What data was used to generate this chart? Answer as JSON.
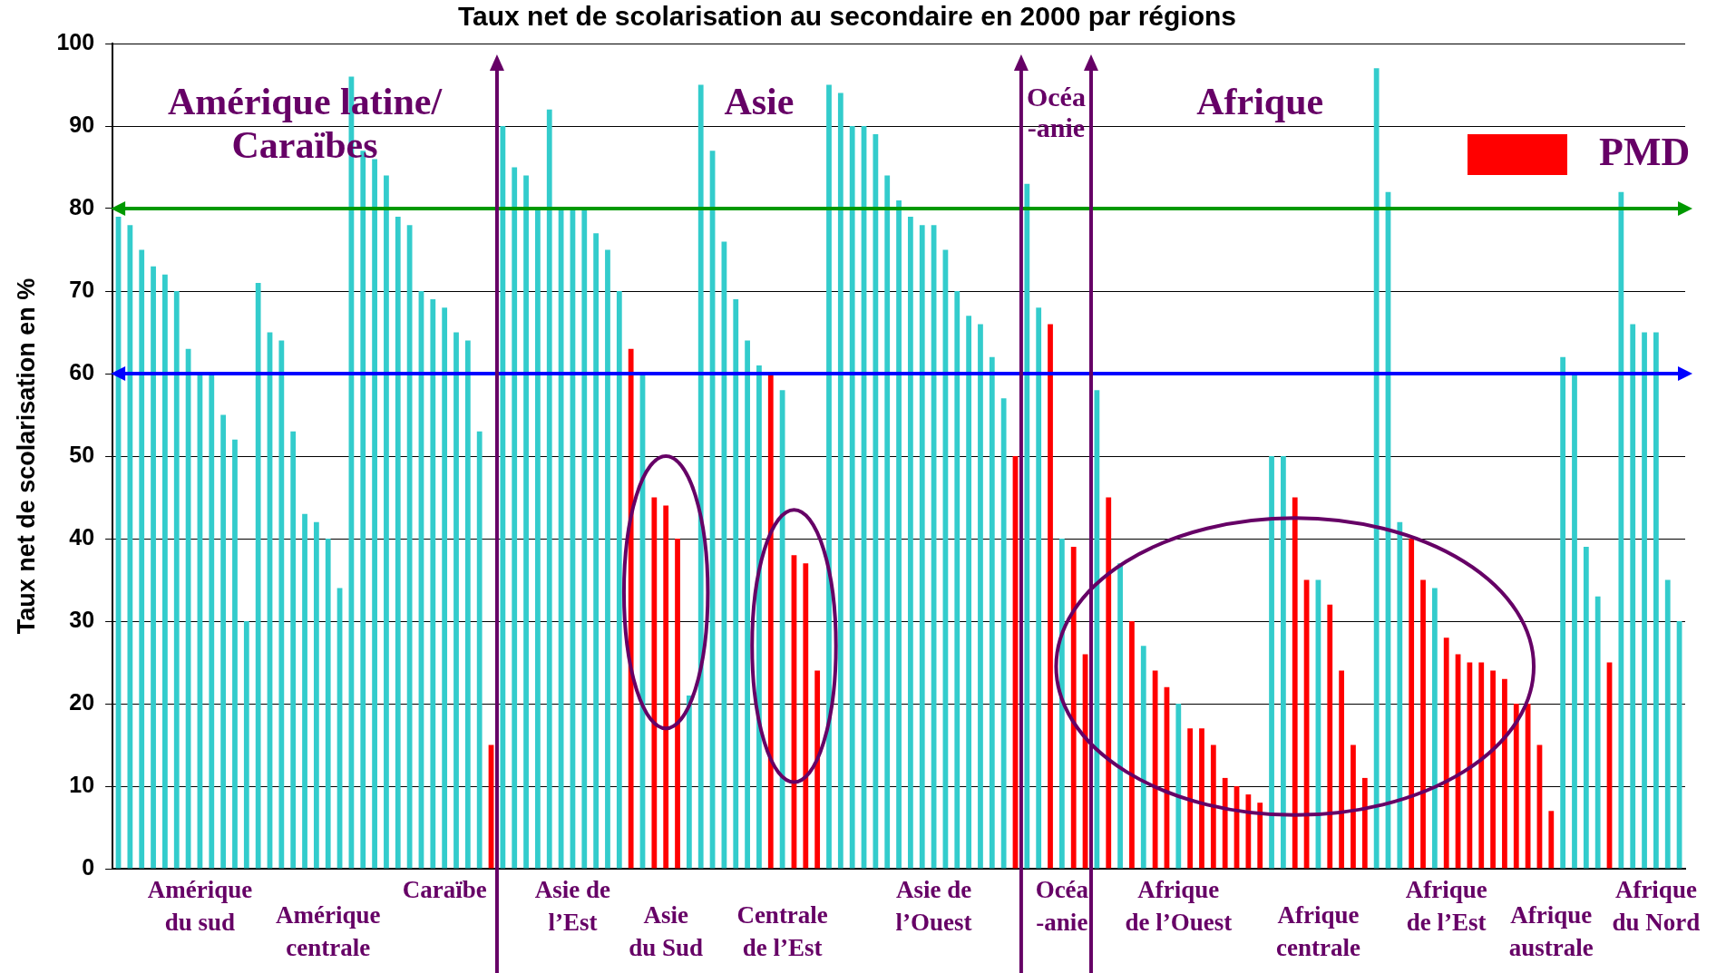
{
  "chart_data": {
    "type": "bar",
    "title": "Taux net de scolarisation au secondaire en 2000 par régions",
    "ylabel": "Taux net de scolarisation en %",
    "categories": [
      null,
      null,
      null,
      null,
      null,
      null,
      null,
      "Amérique\ndu sud",
      null,
      null,
      null,
      null,
      null,
      null,
      null,
      null,
      null,
      null,
      "Amérique\ncentrale",
      null,
      null,
      null,
      null,
      null,
      null,
      null,
      null,
      null,
      "Caraïbe",
      null,
      null,
      null,
      null,
      null,
      null,
      null,
      null,
      null,
      null,
      "Asie de\nl’Est",
      null,
      null,
      null,
      null,
      null,
      null,
      null,
      "Asie\ndu Sud",
      null,
      null,
      null,
      null,
      null,
      null,
      null,
      null,
      null,
      "Centrale\nde l’Est",
      null,
      null,
      null,
      null,
      null,
      null,
      null,
      null,
      null,
      null,
      null,
      null,
      "Asie de\nl’Ouest",
      null,
      null,
      null,
      null,
      null,
      null,
      null,
      null,
      null,
      null,
      "Océa\n-anie",
      null,
      null,
      null,
      null,
      null,
      null,
      null,
      null,
      null,
      "Afrique\nde l’Ouest",
      null,
      null,
      null,
      null,
      null,
      null,
      null,
      null,
      null,
      null,
      null,
      "Afrique\ncentrale",
      null,
      null,
      null,
      null,
      null,
      null,
      null,
      null,
      null,
      null,
      "Afrique\nde l’Est",
      null,
      null,
      null,
      null,
      null,
      null,
      null,
      null,
      "Afrique\naustrale",
      null,
      null,
      null,
      null,
      null,
      null,
      null,
      null,
      "Afrique\ndu Nord",
      null,
      null
    ],
    "series": [
      {
        "color": "#33cccc",
        "values": [
          79,
          78,
          75,
          73,
          72,
          70,
          63,
          60,
          60,
          55,
          52,
          30,
          71,
          65,
          64,
          53,
          43,
          42,
          40,
          34,
          96,
          87,
          86,
          84,
          79,
          78,
          70,
          69,
          68,
          65,
          64,
          53,
          null,
          90,
          85,
          84,
          80,
          92,
          80,
          80,
          80,
          77,
          75,
          70,
          null,
          60,
          null,
          null,
          null,
          21,
          95,
          87,
          76,
          69,
          64,
          61,
          null,
          58,
          null,
          null,
          null,
          95,
          94,
          90,
          90,
          89,
          84,
          81,
          79,
          78,
          78,
          75,
          70,
          67,
          66,
          62,
          57,
          null,
          83,
          68,
          null,
          40,
          null,
          null,
          58,
          null,
          37,
          null,
          27,
          null,
          null,
          20,
          null,
          null,
          null,
          null,
          null,
          null,
          null,
          50,
          50,
          null,
          null,
          35,
          null,
          null,
          null,
          null,
          97,
          82,
          42,
          null,
          null,
          34,
          null,
          null,
          null,
          null,
          null,
          null,
          null,
          null,
          null,
          null,
          62,
          60,
          39,
          33,
          null,
          82,
          66,
          65,
          65,
          35,
          30
        ]
      },
      {
        "name": "PMD",
        "color": "#ff0000",
        "values": [
          null,
          null,
          null,
          null,
          null,
          null,
          null,
          null,
          null,
          null,
          null,
          null,
          null,
          null,
          null,
          null,
          null,
          null,
          null,
          null,
          null,
          null,
          null,
          null,
          null,
          null,
          null,
          null,
          null,
          null,
          null,
          null,
          15,
          null,
          null,
          null,
          null,
          null,
          null,
          null,
          null,
          null,
          null,
          null,
          63,
          null,
          45,
          44,
          40,
          null,
          null,
          null,
          null,
          null,
          null,
          null,
          60,
          null,
          38,
          37,
          24,
          null,
          null,
          null,
          null,
          null,
          null,
          null,
          null,
          null,
          null,
          null,
          null,
          null,
          null,
          null,
          null,
          50,
          null,
          null,
          66,
          null,
          39,
          26,
          null,
          45,
          null,
          30,
          null,
          24,
          22,
          null,
          17,
          17,
          15,
          11,
          10,
          9,
          8,
          null,
          null,
          45,
          35,
          null,
          32,
          24,
          15,
          11,
          null,
          null,
          null,
          40,
          35,
          null,
          28,
          26,
          25,
          25,
          24,
          23,
          20,
          20,
          15,
          7,
          null,
          null,
          null,
          null,
          25,
          null,
          null,
          null,
          null,
          null,
          null
        ]
      }
    ],
    "ylim": [
      0,
      100
    ],
    "yticks": [
      0,
      10,
      20,
      30,
      40,
      50,
      60,
      70,
      80,
      90,
      100
    ],
    "grid": "y",
    "legend": "top right",
    "ref_lines": [
      {
        "axis": "y",
        "value": 80,
        "color": "#009900"
      },
      {
        "axis": "y",
        "value": 60,
        "color": "#0000ff"
      }
    ],
    "annotations": [
      "Amérique latine/\nCaraïbes",
      "Asie",
      "Océa\n-anie",
      "Afrique"
    ]
  }
}
